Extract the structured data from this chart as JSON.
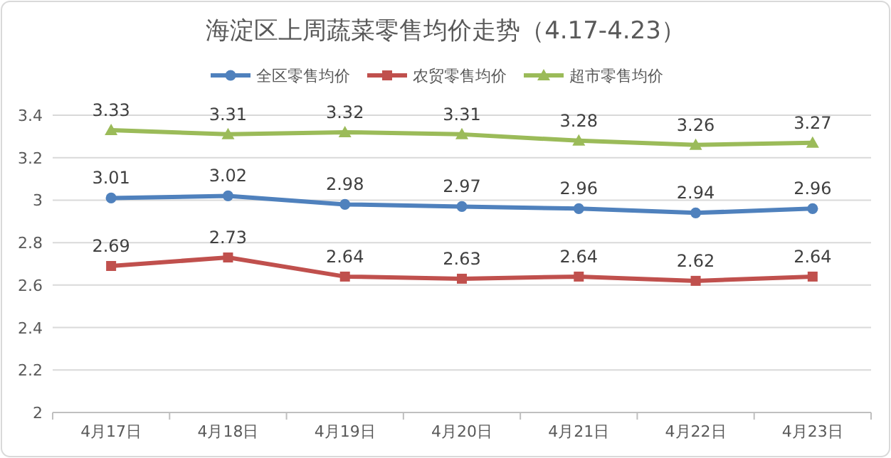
{
  "chart_data": {
    "type": "line",
    "title": "海淀区上周蔬菜零售均价走势（4.17-4.23）",
    "categories": [
      "4月17日",
      "4月18日",
      "4月19日",
      "4月20日",
      "4月21日",
      "4月22日",
      "4月23日"
    ],
    "series": [
      {
        "name": "全区零售均价",
        "color": "#4f81bd",
        "marker": "circle",
        "values": [
          3.01,
          3.02,
          2.98,
          2.97,
          2.96,
          2.94,
          2.96
        ]
      },
      {
        "name": "农贸零售均价",
        "color": "#c0504d",
        "marker": "square",
        "values": [
          2.69,
          2.73,
          2.64,
          2.63,
          2.64,
          2.62,
          2.64
        ]
      },
      {
        "name": "超市零售均价",
        "color": "#9bbb59",
        "marker": "triangle",
        "values": [
          3.33,
          3.31,
          3.32,
          3.31,
          3.28,
          3.26,
          3.27
        ]
      }
    ],
    "ylim": [
      2,
      3.4
    ],
    "yticks": [
      2,
      2.2,
      2.4,
      2.6,
      2.8,
      3,
      3.2,
      3.4
    ],
    "grid": "y",
    "legend": "top",
    "data_labels": true,
    "line_style": "solid"
  }
}
